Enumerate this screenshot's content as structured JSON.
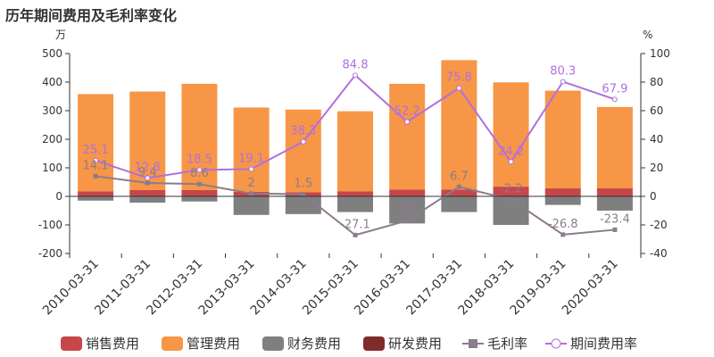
{
  "chart_data": {
    "type": "bar",
    "title": "历年期间费用及毛利率变化",
    "left_unit": "万",
    "right_unit": "%",
    "categories": [
      "2010-03-31",
      "2011-03-31",
      "2012-03-31",
      "2013-03-31",
      "2014-03-31",
      "2015-03-31",
      "2016-03-31",
      "2017-03-31",
      "2018-03-31",
      "2019-03-31",
      "2020-03-31"
    ],
    "left_axis": {
      "ylim": [
        -200,
        500
      ],
      "ticks": [
        -200,
        -100,
        0,
        100,
        200,
        300,
        400,
        500
      ]
    },
    "right_axis": {
      "ylim": [
        -40,
        100
      ],
      "ticks": [
        -40,
        -20,
        0,
        20,
        40,
        60,
        80,
        100
      ]
    },
    "stacked_series": [
      {
        "name": "销售费用",
        "color": "#c6464a",
        "values": [
          18,
          22,
          22,
          16,
          14,
          18,
          24,
          24,
          34,
          28,
          28
        ]
      },
      {
        "name": "管理费用",
        "color": "#f79646",
        "values": [
          340,
          345,
          372,
          295,
          290,
          280,
          370,
          453,
          365,
          342,
          285
        ]
      },
      {
        "name": "财务费用",
        "color": "#7f7f7f",
        "values": [
          -15,
          -22,
          -18,
          -65,
          -62,
          -55,
          -95,
          -55,
          -100,
          -30,
          -50
        ]
      },
      {
        "name": "研发费用",
        "color": "#7f2b2b",
        "values": [
          0,
          0,
          0,
          0,
          0,
          0,
          0,
          0,
          0,
          0,
          0
        ]
      }
    ],
    "line_series": [
      {
        "name": "毛利率",
        "axis": "right",
        "color": "#8c7b8c",
        "values": [
          14.1,
          9.4,
          8.6,
          2,
          1.5,
          -27.1,
          -17,
          6.7,
          -2.2,
          -26.8,
          -23.4
        ],
        "labels": [
          "14.1",
          "9.4",
          "8.6",
          "2",
          "1.5",
          "-27.1",
          "-17",
          "6.7",
          "-2.2",
          "-26.8",
          "-23.4"
        ]
      },
      {
        "name": "期间费用率",
        "axis": "right",
        "color": "#b06fe0",
        "values": [
          25.1,
          12.8,
          18.5,
          19.1,
          38.3,
          84.8,
          52.2,
          75.8,
          24.2,
          80.3,
          67.9
        ],
        "labels": [
          "25.1",
          "12.8",
          "18.5",
          "19.1",
          "38.3",
          "84.8",
          "52.2",
          "75.8",
          "24.2",
          "80.3",
          "67.9"
        ]
      }
    ],
    "legend": {
      "position": "bottom"
    }
  }
}
